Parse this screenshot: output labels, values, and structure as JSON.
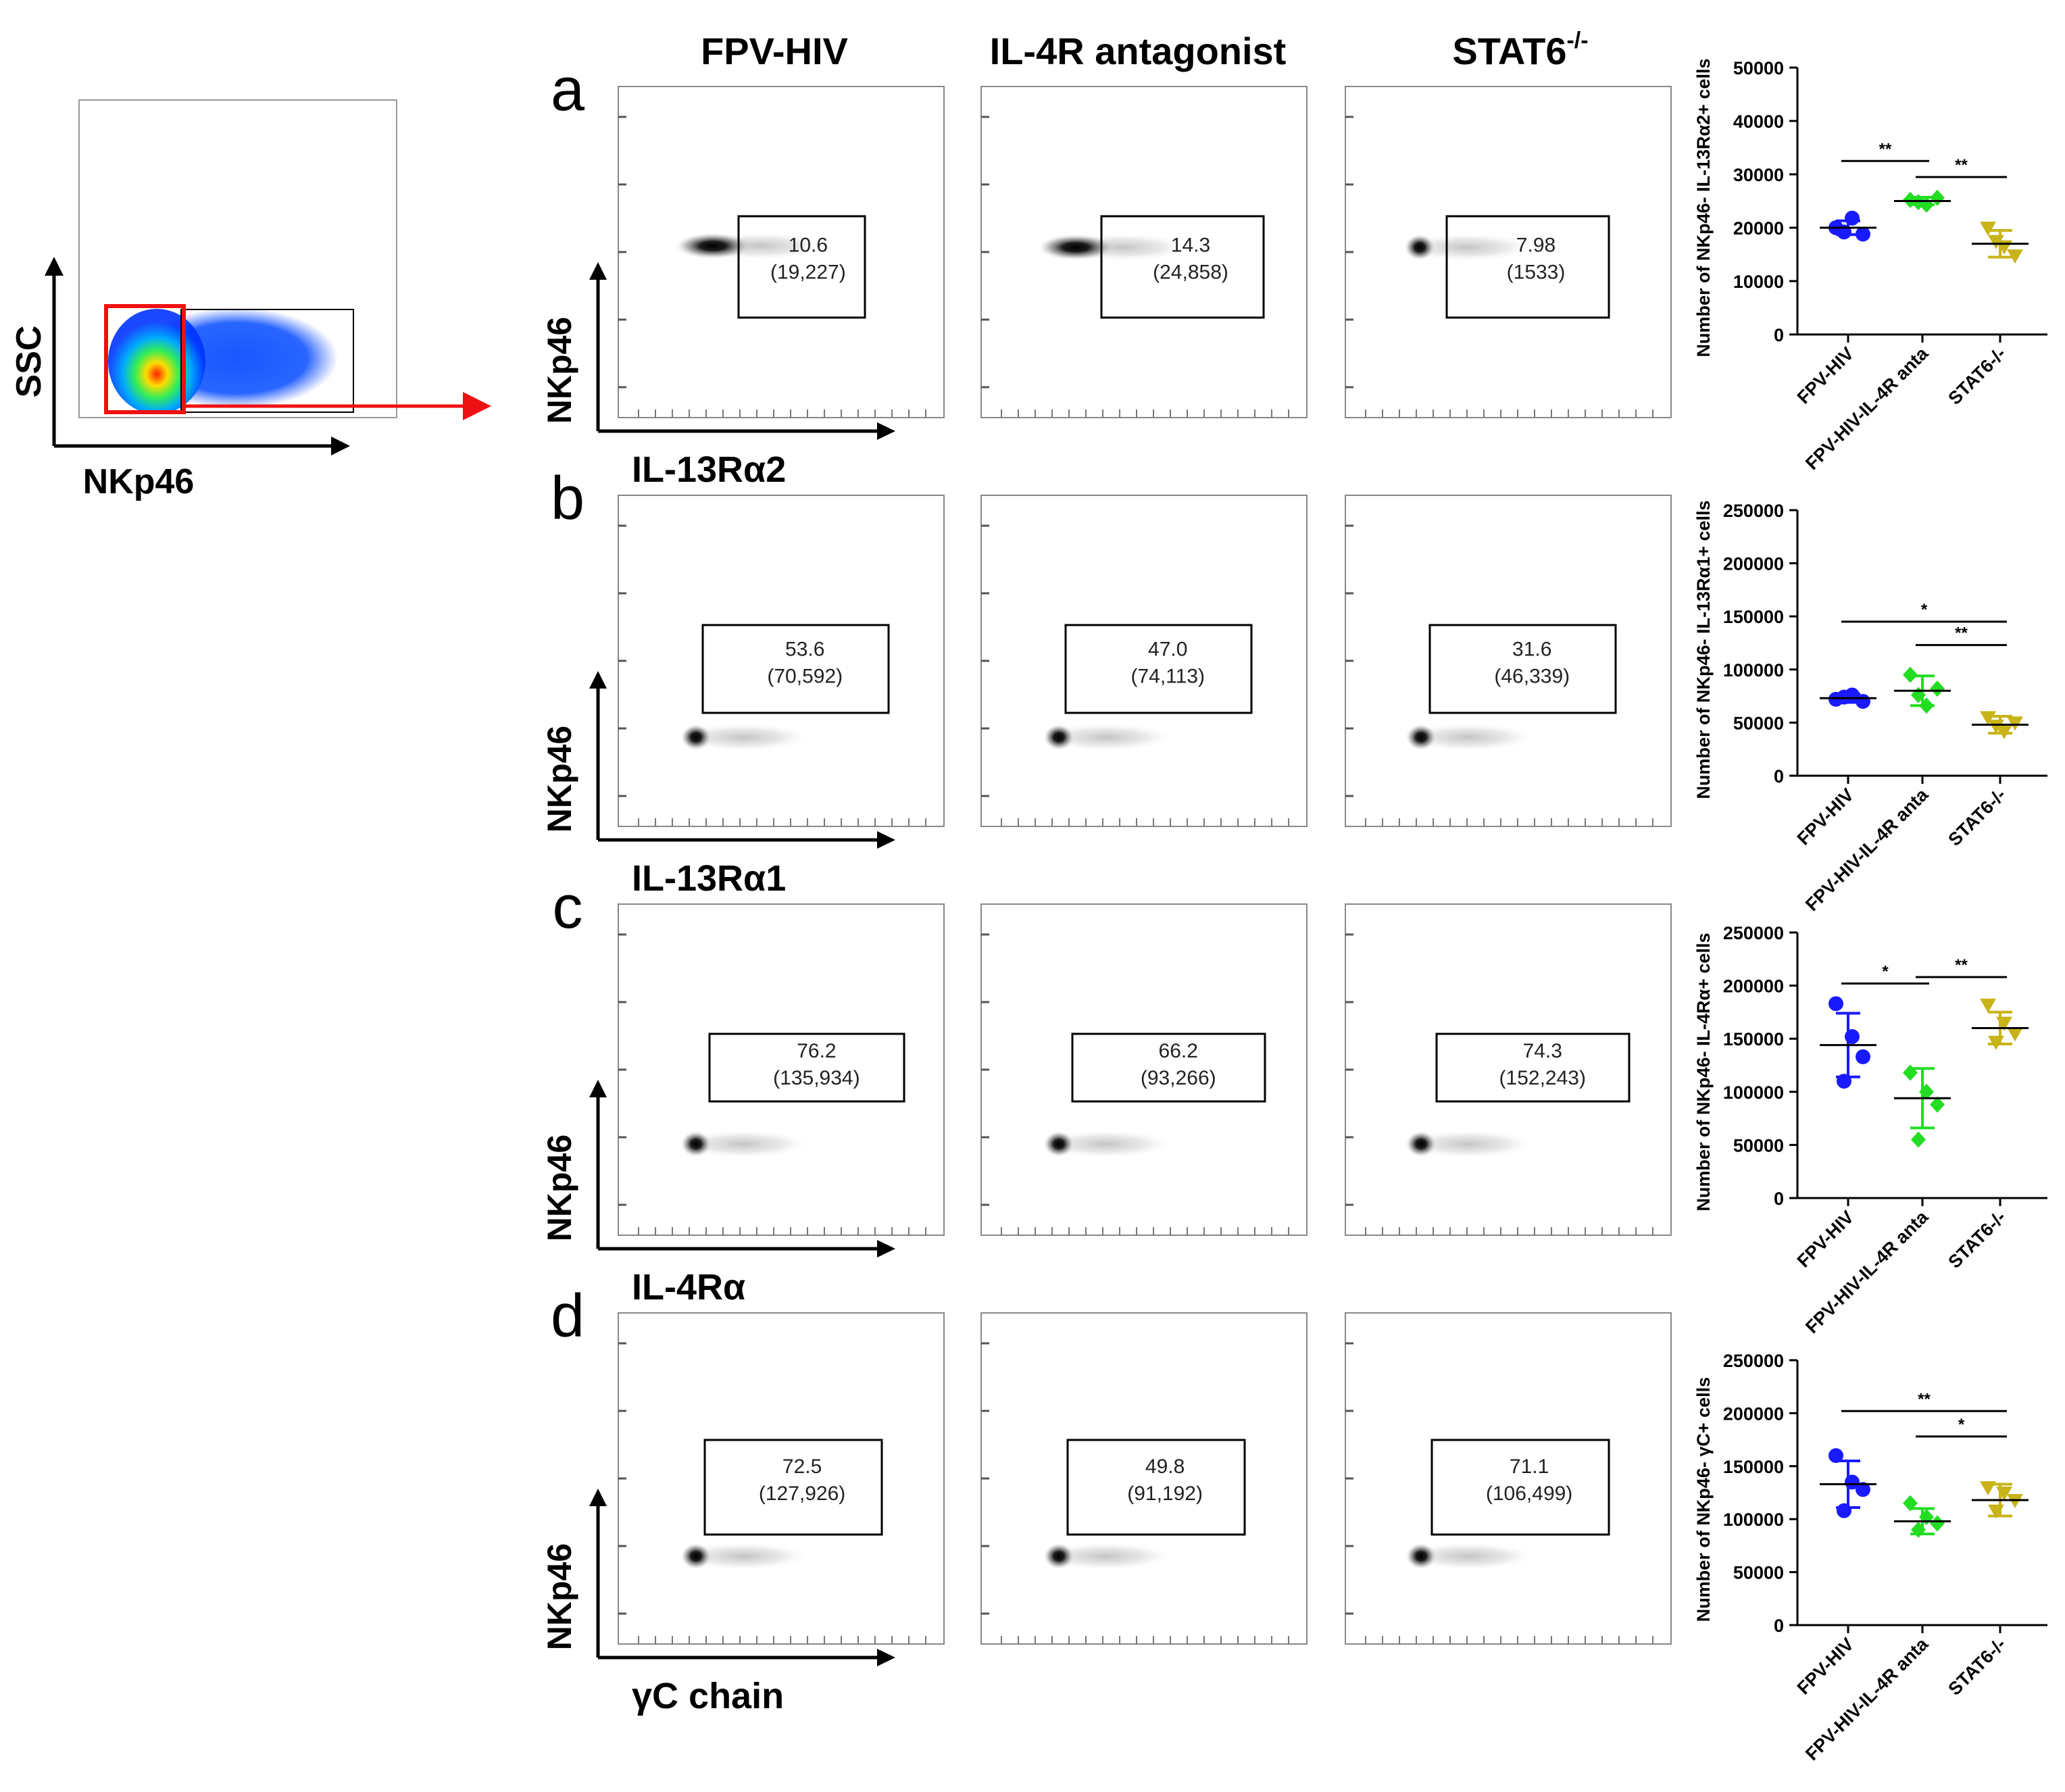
{
  "gating_plot": {
    "y_label": "SSC",
    "x_label": "NKp46"
  },
  "column_headers": [
    "FPV-HIV",
    "IL-4R antagonist",
    "STAT6"
  ],
  "column_header_superscript": "-/-",
  "row_letters": [
    "a",
    "b",
    "c",
    "d"
  ],
  "flow_y_label": "NKp46",
  "flow_x_labels": [
    "IL-13Rα2",
    "IL-13Rα1",
    "IL-4Rα",
    "γC chain"
  ],
  "gate_values": [
    [
      {
        "pct": "10.6",
        "count": "(19,227)"
      },
      {
        "pct": "14.3",
        "count": "(24,858)"
      },
      {
        "pct": "7.98",
        "count": "(1533)"
      }
    ],
    [
      {
        "pct": "53.6",
        "count": "(70,592)"
      },
      {
        "pct": "47.0",
        "count": "(74,113)"
      },
      {
        "pct": "31.6",
        "count": "(46,339)"
      }
    ],
    [
      {
        "pct": "76.2",
        "count": "(135,934)"
      },
      {
        "pct": "66.2",
        "count": "(93,266)"
      },
      {
        "pct": "74.3",
        "count": "(152,243)"
      }
    ],
    [
      {
        "pct": "72.5",
        "count": "(127,926)"
      },
      {
        "pct": "49.8",
        "count": "(91,192)"
      },
      {
        "pct": "71.1",
        "count": "(106,499)"
      }
    ]
  ],
  "colors": {
    "fpv_hiv": "#1a1aff",
    "il4r_anta": "#22dd22",
    "stat6": "#c8b418",
    "gate_red": "#ee1111"
  },
  "chart_data": [
    {
      "type": "scatter",
      "ylabel": "Number of NKp46- IL-13Rα2+ cells",
      "categories": [
        "FPV-HIV",
        "FPV-HIV-IL-4R anta",
        "STAT6-/-"
      ],
      "ylim": [
        0,
        50000
      ],
      "yticks": [
        "0",
        "10000",
        "20000",
        "30000",
        "40000",
        "50000"
      ],
      "series": [
        {
          "points": [
            20000,
            21800,
            18800,
            19200
          ],
          "mean": 20000,
          "sd": 1300
        },
        {
          "points": [
            25200,
            24300,
            25600,
            24800
          ],
          "mean": 25000,
          "sd": 700
        },
        {
          "points": [
            20000,
            16500,
            14800,
            17500
          ],
          "mean": 17000,
          "sd": 2500
        }
      ],
      "brackets": [
        {
          "from": 0,
          "to": 1,
          "y": 32500,
          "label": "**"
        },
        {
          "from": 1,
          "to": 2,
          "y": 29500,
          "label": "**"
        }
      ]
    },
    {
      "type": "scatter",
      "ylabel": "Number of NKp46- IL-13Rα1+ cells",
      "categories": [
        "FPV-HIV",
        "FPV-HIV-IL-4R anta",
        "STAT6-/-"
      ],
      "ylim": [
        0,
        250000
      ],
      "yticks": [
        "0",
        "50000",
        "100000",
        "150000",
        "200000",
        "250000"
      ],
      "series": [
        {
          "points": [
            72000,
            76000,
            70000,
            74000
          ],
          "mean": 73000,
          "sd": 4000
        },
        {
          "points": [
            95000,
            66000,
            82000,
            76000
          ],
          "mean": 80000,
          "sd": 14000
        },
        {
          "points": [
            55000,
            42000,
            50000,
            47000
          ],
          "mean": 48000,
          "sd": 8000
        }
      ],
      "brackets": [
        {
          "from": 0,
          "to": 2,
          "y": 145000,
          "label": "*"
        },
        {
          "from": 1,
          "to": 2,
          "y": 123000,
          "label": "**"
        }
      ]
    },
    {
      "type": "scatter",
      "ylabel": "Number of NKp46- IL-4Rα+ cells",
      "categories": [
        "FPV-HIV",
        "FPV-HIV-IL-4R anta",
        "STAT6-/-"
      ],
      "ylim": [
        0,
        250000
      ],
      "yticks": [
        "0",
        "50000",
        "100000",
        "150000",
        "200000",
        "250000"
      ],
      "series": [
        {
          "points": [
            183000,
            152000,
            133000,
            110000
          ],
          "mean": 144000,
          "sd": 30000
        },
        {
          "points": [
            118000,
            100000,
            88000,
            55000
          ],
          "mean": 94000,
          "sd": 28000
        },
        {
          "points": [
            182000,
            165000,
            155000,
            147000
          ],
          "mean": 160000,
          "sd": 15000
        }
      ],
      "brackets": [
        {
          "from": 0,
          "to": 1,
          "y": 202000,
          "label": "*"
        },
        {
          "from": 1,
          "to": 2,
          "y": 208000,
          "label": "**"
        }
      ]
    },
    {
      "type": "scatter",
      "ylabel": "Number of NKp46- γC+ cells",
      "categories": [
        "FPV-HIV",
        "FPV-HIV-IL-4R anta",
        "STAT6-/-"
      ],
      "ylim": [
        0,
        250000
      ],
      "yticks": [
        "0",
        "50000",
        "100000",
        "150000",
        "200000",
        "250000"
      ],
      "series": [
        {
          "points": [
            160000,
            135000,
            128000,
            108000
          ],
          "mean": 133000,
          "sd": 22000
        },
        {
          "points": [
            115000,
            102000,
            96000,
            90000
          ],
          "mean": 98000,
          "sd": 12000
        },
        {
          "points": [
            130000,
            125000,
            118000,
            108000
          ],
          "mean": 118000,
          "sd": 15000
        }
      ],
      "brackets": [
        {
          "from": 0,
          "to": 2,
          "y": 202000,
          "label": "**"
        },
        {
          "from": 1,
          "to": 2,
          "y": 178000,
          "label": "*"
        }
      ]
    }
  ]
}
